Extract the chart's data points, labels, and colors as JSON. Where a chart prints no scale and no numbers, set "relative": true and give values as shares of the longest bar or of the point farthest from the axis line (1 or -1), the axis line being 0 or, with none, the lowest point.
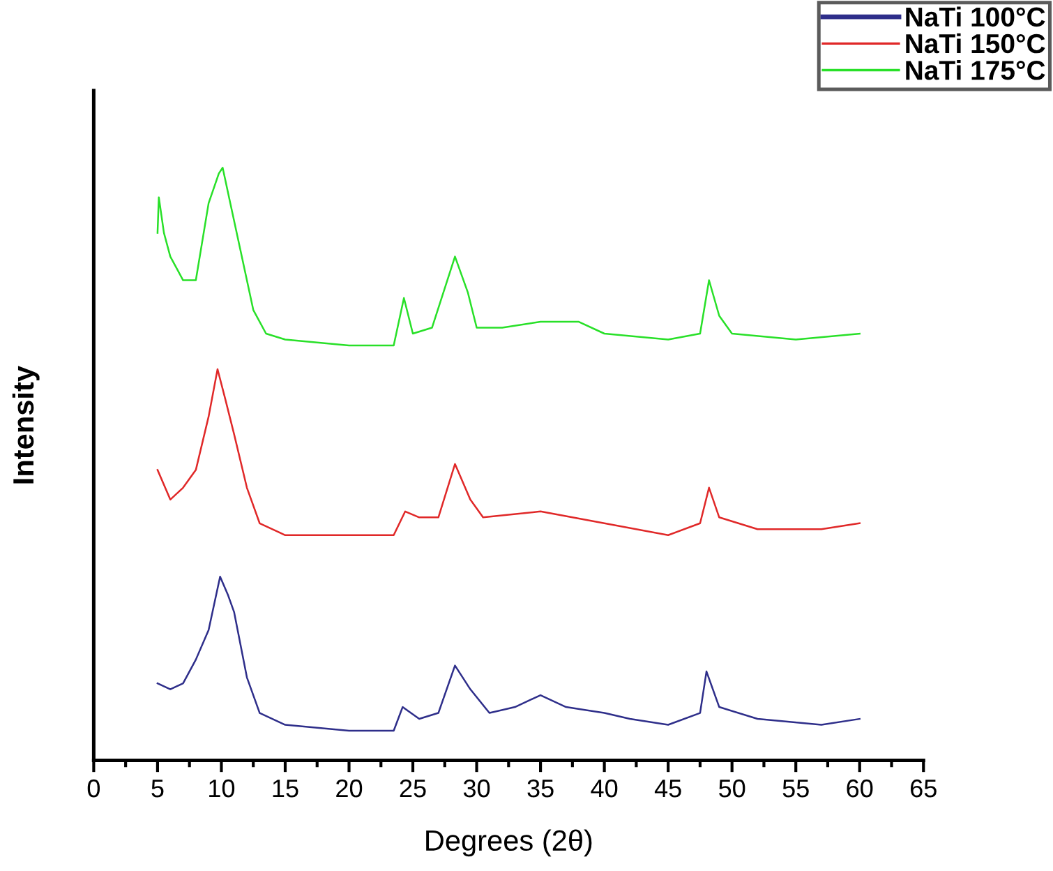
{
  "chart_data": {
    "type": "line",
    "xlabel": "Degrees (2θ)",
    "ylabel": "Intensity",
    "relative": true,
    "xlim": [
      0,
      65
    ],
    "xticks": [
      0,
      5,
      10,
      15,
      20,
      25,
      30,
      35,
      40,
      45,
      50,
      55,
      60,
      65
    ],
    "grid": false,
    "legend": "top right",
    "marker": "none",
    "line_style": "solid",
    "series": [
      {
        "name": "NaTi 100°C",
        "color": "#2e2e8a",
        "x": [
          5.0,
          6,
          7,
          8,
          9,
          9.9,
          10.5,
          11,
          12,
          13,
          15,
          20,
          23.5,
          24.2,
          25.5,
          27,
          28.3,
          29.5,
          31,
          33,
          35,
          37,
          40,
          42,
          45,
          47.5,
          48.0,
          49,
          52,
          57,
          60
        ],
        "values": [
          0.13,
          0.12,
          0.13,
          0.17,
          0.22,
          0.31,
          0.28,
          0.25,
          0.14,
          0.08,
          0.06,
          0.05,
          0.05,
          0.09,
          0.07,
          0.08,
          0.16,
          0.12,
          0.08,
          0.09,
          0.11,
          0.09,
          0.08,
          0.07,
          0.06,
          0.08,
          0.15,
          0.09,
          0.07,
          0.06,
          0.07
        ]
      },
      {
        "name": "NaTi 150°C",
        "color": "#e02828",
        "x": [
          5.0,
          6,
          7,
          8,
          9,
          9.7,
          10.3,
          11,
          12,
          13,
          15,
          20,
          23.5,
          24.4,
          25.5,
          27,
          28.3,
          29.5,
          30.5,
          35,
          40,
          45,
          47.5,
          48.2,
          49,
          52,
          57,
          60
        ],
        "values": [
          0.49,
          0.44,
          0.46,
          0.49,
          0.58,
          0.66,
          0.61,
          0.55,
          0.46,
          0.4,
          0.38,
          0.38,
          0.38,
          0.42,
          0.41,
          0.41,
          0.5,
          0.44,
          0.41,
          0.42,
          0.4,
          0.38,
          0.4,
          0.46,
          0.41,
          0.39,
          0.39,
          0.4
        ]
      },
      {
        "name": "NaTi 175°C",
        "color": "#28e028",
        "x": [
          5.0,
          5.1,
          5.5,
          6,
          7,
          8,
          9,
          9.8,
          10.1,
          10.6,
          11.5,
          12.5,
          13.5,
          15,
          20,
          23.5,
          24.3,
          25,
          26.5,
          28.3,
          29.3,
          30,
          32,
          35,
          38,
          40,
          45,
          47.5,
          48.2,
          49,
          50,
          55,
          60
        ],
        "values": [
          0.89,
          0.95,
          0.89,
          0.85,
          0.81,
          0.81,
          0.94,
          0.99,
          1.0,
          0.95,
          0.86,
          0.76,
          0.72,
          0.71,
          0.7,
          0.7,
          0.78,
          0.72,
          0.73,
          0.85,
          0.79,
          0.73,
          0.73,
          0.74,
          0.74,
          0.72,
          0.71,
          0.72,
          0.81,
          0.75,
          0.72,
          0.71,
          0.72
        ]
      }
    ]
  }
}
